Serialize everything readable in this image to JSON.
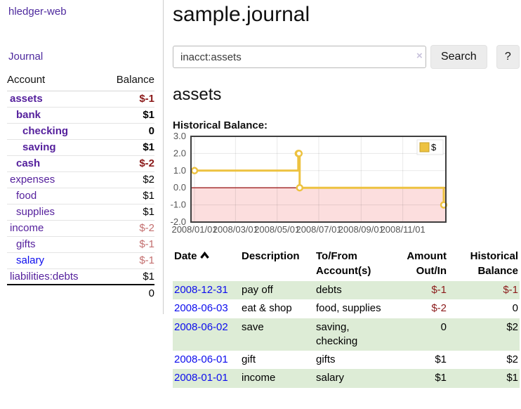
{
  "colors": {
    "link_purple": "#541f9c",
    "nav_purple": "#4e2a9e",
    "link_blue": "#0c0cee",
    "negative_dark": "#8b1a1a",
    "negative_muted": "#c36f6f",
    "row_green": "#ddecd6",
    "chart_line_gold": "#edc240",
    "chart_zero_line": "#9e1f1f",
    "chart_negative_fill": "#fcdede",
    "button_bg": "#ececec"
  },
  "sidebar": {
    "app_title": "hledger-web",
    "journal_label": "Journal",
    "headers": {
      "account": "Account",
      "balance": "Balance"
    },
    "accounts": [
      {
        "name": "assets",
        "balance": "$-1"
      },
      {
        "name": "bank",
        "balance": "$1"
      },
      {
        "name": "checking",
        "balance": "0"
      },
      {
        "name": "saving",
        "balance": "$1"
      },
      {
        "name": "cash",
        "balance": "$-2"
      },
      {
        "name": "expenses",
        "balance": "$2"
      },
      {
        "name": "food",
        "balance": "$1"
      },
      {
        "name": "supplies",
        "balance": "$1"
      },
      {
        "name": "income",
        "balance": "$-2"
      },
      {
        "name": "gifts",
        "balance": "$-1"
      },
      {
        "name": "salary",
        "balance": "$-1"
      },
      {
        "name": "liabilities:debts",
        "balance": "$1"
      }
    ],
    "total": "0"
  },
  "main": {
    "title": "sample.journal",
    "search": {
      "value": "inacct:assets",
      "clear_icon": "×",
      "search_button": "Search",
      "help_button": "?"
    },
    "account_heading": "assets",
    "chart_title": "Historical Balance:"
  },
  "chart_data": {
    "type": "line",
    "title": "Historical Balance:",
    "series": [
      {
        "name": "$",
        "color": "#edc240",
        "step": true,
        "points": [
          [
            "2008-01-01",
            1
          ],
          [
            "2008-06-01",
            2
          ],
          [
            "2008-06-02",
            2
          ],
          [
            "2008-06-03",
            0
          ],
          [
            "2008-12-31",
            -1
          ]
        ]
      }
    ],
    "xlim": [
      "2008-01-01",
      "2008-12-31"
    ],
    "ylim": [
      -2,
      3
    ],
    "y_ticks": [
      3,
      2,
      1,
      0,
      -1,
      -2
    ],
    "x_tick_dates": [
      "2008-01-01",
      "2008-03-01",
      "2008-05-01",
      "2008-07-01",
      "2008-09-01",
      "2008-11-01"
    ],
    "x_ticks": [
      "2008/01/01",
      "2008/03/01",
      "2008/05/01",
      "2008/07/01",
      "2008/09/01",
      "2008/11/01"
    ],
    "grid": true,
    "legend_position": "top-right",
    "negative_region_fill": "#fcdede",
    "zero_line_color": "#9e1f1f"
  },
  "register": {
    "columns": [
      "Date",
      "Description",
      "To/From Account(s)",
      "Amount Out/In",
      "Historical Balance"
    ],
    "rows": [
      {
        "date": "2008-12-31",
        "description": "pay off",
        "accounts": "debts",
        "amount": "$-1",
        "balance": "$-1"
      },
      {
        "date": "2008-06-03",
        "description": "eat & shop",
        "accounts": "food, supplies",
        "amount": "$-2",
        "balance": "0"
      },
      {
        "date": "2008-06-02",
        "description": "save",
        "accounts": "saving, checking",
        "amount": "0",
        "balance": "$2"
      },
      {
        "date": "2008-06-01",
        "description": "gift",
        "accounts": "gifts",
        "amount": "$1",
        "balance": "$2"
      },
      {
        "date": "2008-01-01",
        "description": "income",
        "accounts": "salary",
        "amount": "$1",
        "balance": "$1"
      }
    ]
  }
}
